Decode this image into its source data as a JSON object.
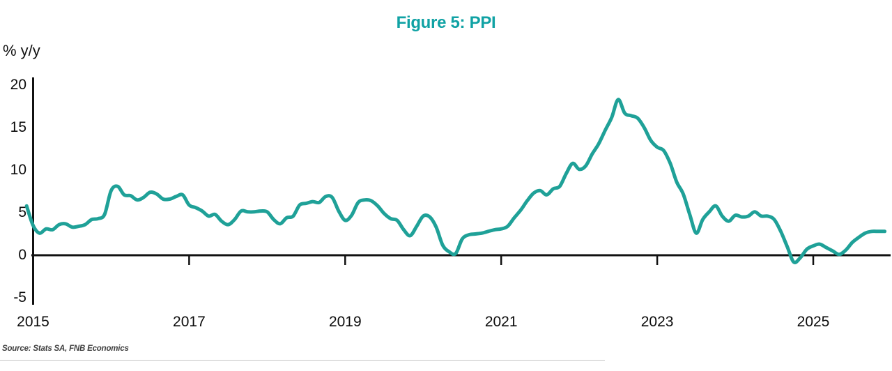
{
  "chart_data": {
    "type": "line",
    "title": "Figure 5: PPI",
    "unit_label": "% y/y",
    "source": "Source: Stats SA, FNB Economics",
    "x_unit": "month",
    "legend": "none",
    "grid": "off",
    "ylim": [
      -5,
      20
    ],
    "y_axis": {
      "tick_values": [
        20,
        15,
        10,
        5,
        0,
        -5
      ],
      "tick_labels": [
        "20",
        "15",
        "10",
        "5",
        "0",
        "-5"
      ]
    },
    "x_axis": {
      "tick_years": [
        2015,
        2017,
        2019,
        2021,
        2023,
        2025
      ],
      "tick_labels": [
        "2015",
        "2017",
        "2019",
        "2021",
        "2023",
        "2025"
      ],
      "marked_tick_years": [
        2017,
        2019,
        2021,
        2023,
        2025
      ]
    },
    "series": [
      {
        "name": "PPI % y/y",
        "start": "2014-12",
        "values": [
          5.8,
          3.5,
          2.6,
          3.1,
          3.0,
          3.6,
          3.7,
          3.3,
          3.4,
          3.6,
          4.2,
          4.3,
          4.8,
          7.6,
          8.1,
          7.1,
          7.0,
          6.5,
          6.8,
          7.4,
          7.2,
          6.6,
          6.6,
          6.9,
          7.1,
          5.9,
          5.6,
          5.2,
          4.6,
          4.8,
          4.0,
          3.6,
          4.2,
          5.2,
          5.1,
          5.1,
          5.2,
          5.1,
          4.2,
          3.7,
          4.4,
          4.6,
          5.9,
          6.1,
          6.3,
          6.2,
          6.9,
          6.8,
          5.2,
          4.1,
          4.7,
          6.2,
          6.5,
          6.4,
          5.8,
          4.9,
          4.3,
          4.1,
          3.0,
          2.3,
          3.4,
          4.6,
          4.5,
          3.3,
          1.2,
          0.4,
          0.2,
          1.9,
          2.4,
          2.5,
          2.6,
          2.8,
          3.0,
          3.1,
          3.4,
          4.4,
          5.3,
          6.4,
          7.3,
          7.6,
          7.1,
          7.8,
          8.1,
          9.6,
          10.8,
          10.1,
          10.5,
          11.9,
          13.1,
          14.7,
          16.2,
          18.3,
          16.7,
          16.4,
          16.1,
          15.0,
          13.5,
          12.7,
          12.3,
          10.8,
          8.6,
          7.2,
          4.8,
          2.6,
          4.2,
          5.1,
          5.8,
          4.6,
          4.0,
          4.7,
          4.5,
          4.6,
          5.1,
          4.6,
          4.6,
          4.2,
          2.8,
          1.0,
          -0.8,
          -0.3,
          0.7,
          1.1,
          1.3,
          0.9,
          0.5,
          0.1,
          0.6,
          1.5,
          2.1,
          2.6,
          2.8,
          2.8,
          2.8
        ]
      }
    ],
    "colors": {
      "line": "#1FA198",
      "title": "#10A2A4",
      "axis": "#111111",
      "tick_text": "#0b0b0b",
      "source_text": "#3f3f3f",
      "divider": "#c6c6c6"
    }
  }
}
